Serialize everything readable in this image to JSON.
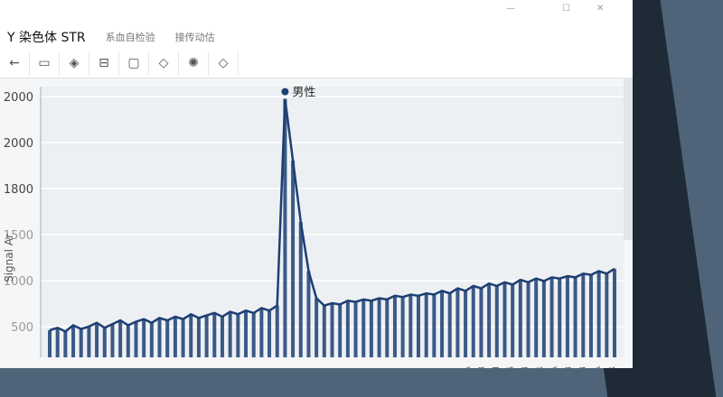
{
  "window": {
    "minimize": "—",
    "maximize": "☐",
    "close": "✕"
  },
  "menubar": {
    "title": "Y 染色体 STR",
    "items": [
      "系血自检验",
      "接传动估"
    ]
  },
  "toolbar": {
    "icons": [
      "back-arrow-icon",
      "folder-icon",
      "layers-icon",
      "layout-icon",
      "square-icon",
      "diamond-icon",
      "settings-icon",
      "diamond-outline-icon"
    ]
  },
  "chart_data": {
    "type": "line",
    "ylabel": "Signal Ar",
    "yticks": [
      "2000",
      "2000",
      "1800",
      "1500",
      "1000",
      "500"
    ],
    "xticks": [
      "A",
      "B",
      "II",
      "6",
      "TB",
      "STR",
      "TA",
      "STB",
      "STB",
      "STA",
      "STR"
    ],
    "annotation": "男性",
    "color": "#1d3f73",
    "grid": true,
    "ylim": [
      0,
      2200
    ],
    "values": [
      220,
      240,
      210,
      260,
      230,
      250,
      280,
      240,
      270,
      300,
      260,
      290,
      310,
      280,
      320,
      300,
      330,
      310,
      350,
      320,
      340,
      360,
      330,
      370,
      350,
      380,
      360,
      400,
      380,
      420,
      2100,
      1600,
      1100,
      700,
      480,
      420,
      440,
      430,
      460,
      450,
      470,
      460,
      480,
      470,
      500,
      490,
      510,
      500,
      520,
      510,
      540,
      520,
      560,
      540,
      580,
      560,
      600,
      580,
      610,
      590,
      630,
      610,
      640,
      620,
      650,
      640,
      660,
      650,
      680,
      670,
      700,
      680,
      720
    ]
  }
}
